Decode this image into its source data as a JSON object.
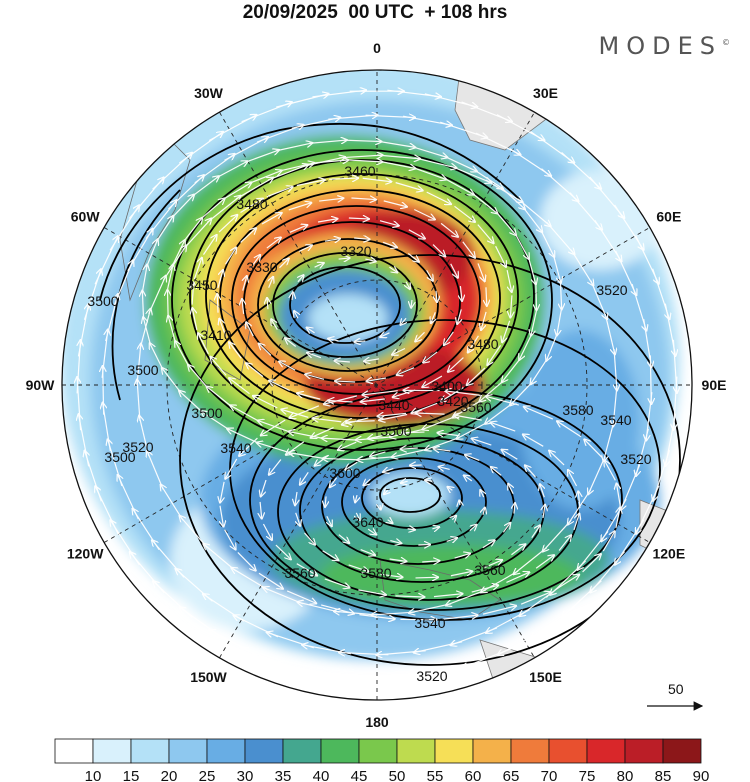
{
  "title": "20/09/2025  00 UTC  + 108 hrs",
  "brand": "MODES",
  "brand_mark": "©",
  "longitude_labels": [
    {
      "text": "0",
      "lon": 0
    },
    {
      "text": "30E",
      "lon": 30
    },
    {
      "text": "60E",
      "lon": 60
    },
    {
      "text": "90E",
      "lon": 90
    },
    {
      "text": "120E",
      "lon": 120
    },
    {
      "text": "150E",
      "lon": 150
    },
    {
      "text": "180",
      "lon": 180
    },
    {
      "text": "150W",
      "lon": -150
    },
    {
      "text": "120W",
      "lon": -120
    },
    {
      "text": "90W",
      "lon": -90
    },
    {
      "text": "60W",
      "lon": -60
    },
    {
      "text": "30W",
      "lon": -30
    }
  ],
  "contour_labels": [
    "3460",
    "3480",
    "3500",
    "3320",
    "3330",
    "3450",
    "3440",
    "3410",
    "3500",
    "3500",
    "3520",
    "3540",
    "3420",
    "3400",
    "3480",
    "3520",
    "3560",
    "3500",
    "3580",
    "3600",
    "3640",
    "3560",
    "3580",
    "3560",
    "3540",
    "3520",
    "3540",
    "3520",
    "3500"
  ],
  "reference_vector": {
    "label": "50"
  },
  "colorbar": {
    "ticks": [
      "10",
      "15",
      "20",
      "25",
      "30",
      "35",
      "40",
      "45",
      "50",
      "55",
      "60",
      "65",
      "70",
      "75",
      "80",
      "85",
      "90"
    ],
    "colors": [
      "#ffffff",
      "#d9f1fc",
      "#b4e1f7",
      "#8ec8ef",
      "#68ade4",
      "#4a8fcf",
      "#44a78f",
      "#4db85c",
      "#7ac84c",
      "#bedb4f",
      "#f6df57",
      "#f4b14a",
      "#ef7b3b",
      "#e8502f",
      "#d9272a",
      "#bb1e27",
      "#8c1719"
    ]
  }
}
